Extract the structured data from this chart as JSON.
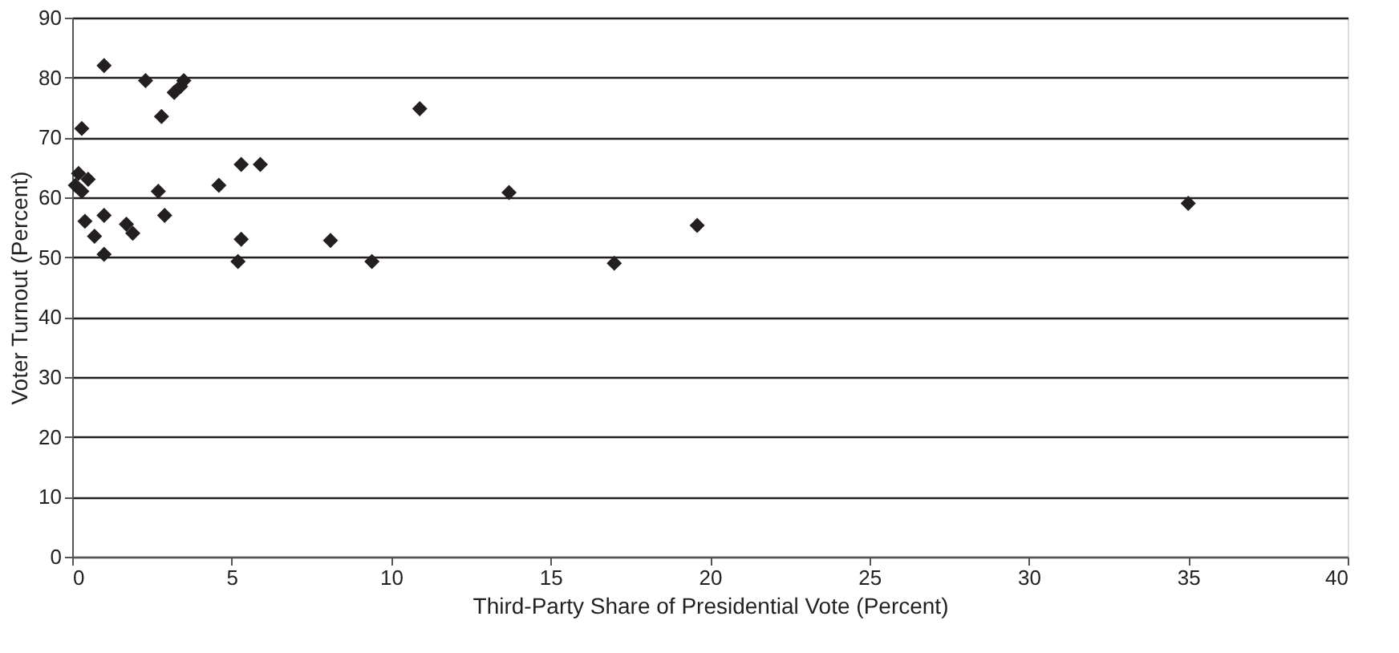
{
  "chart_data": {
    "type": "scatter",
    "xlabel": "Third-Party Share of Presidential Vote (Percent)",
    "ylabel": "Voter Turnout (Percent)",
    "x": [
      1.0,
      2.3,
      3.2,
      3.5,
      3.4,
      2.8,
      0.3,
      0.2,
      0.1,
      0.5,
      0.3,
      0.4,
      0.7,
      1.0,
      1.0,
      1.7,
      1.9,
      2.7,
      2.9,
      4.6,
      5.3,
      5.9,
      5.3,
      5.2,
      8.1,
      9.4,
      10.9,
      13.7,
      17.0,
      19.6,
      35.0
    ],
    "series": [
      {
        "color": "#231f20",
        "values": [
          82,
          79.5,
          77.5,
          79.5,
          78.5,
          73.5,
          71.5,
          64,
          62,
          63,
          61,
          56,
          53.5,
          57,
          50.5,
          55.5,
          54,
          61,
          57,
          62,
          65.5,
          65.5,
          53,
          49.3,
          52.8,
          49.3,
          74.8,
          60.8,
          49,
          55.3,
          59
        ]
      }
    ],
    "xlim": [
      0,
      40
    ],
    "xticks": [
      0,
      5,
      10,
      15,
      20,
      25,
      30,
      35,
      40
    ],
    "ylim": [
      0,
      90
    ],
    "yticks": [
      0,
      10,
      20,
      30,
      40,
      50,
      60,
      70,
      80,
      90
    ],
    "grid": "y",
    "marker": "diamond"
  }
}
